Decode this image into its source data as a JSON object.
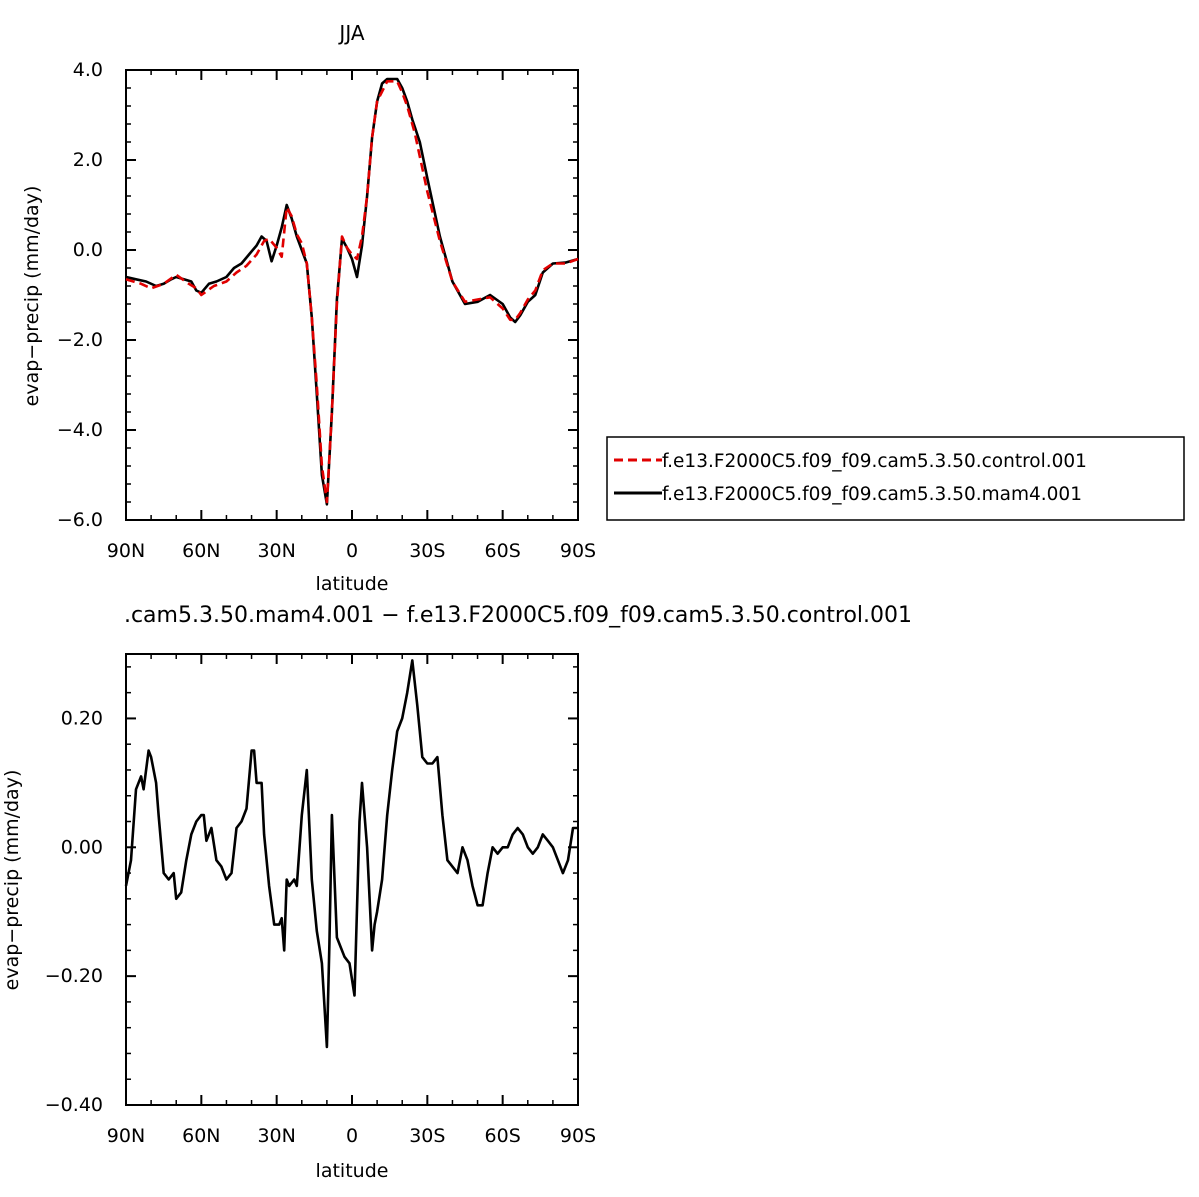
{
  "chart_data": [
    {
      "type": "line",
      "title": "JJA",
      "xlabel": "latitude",
      "ylabel": "evap−precip (mm/day)",
      "x_axis_note": "x runs from 90N to 90S; southern latitudes negative",
      "xlim": [
        90,
        -90
      ],
      "ylim": [
        -6.0,
        4.0
      ],
      "x_ticks": [
        90,
        60,
        30,
        0,
        -30,
        -60,
        -90
      ],
      "x_tick_labels": [
        "90N",
        "60N",
        "30N",
        "0",
        "30S",
        "60S",
        "90S"
      ],
      "y_ticks": [
        4.0,
        2.0,
        0.0,
        -2.0,
        -4.0,
        -6.0
      ],
      "y_tick_labels": [
        "4.0",
        "2.0",
        "0.0",
        "−2.0",
        "−4.0",
        "−6.0"
      ],
      "legend_position": "right",
      "series": [
        {
          "name": "f.e13.F2000C5.f09_f09.cam5.3.50.control.001",
          "color": "#e00000",
          "style": "dashed",
          "x": [
            90,
            84,
            80,
            75,
            70,
            65,
            62,
            60,
            55,
            50,
            46,
            42,
            38,
            35,
            33,
            30,
            28,
            26,
            24,
            22,
            20,
            18,
            16,
            14,
            12,
            10,
            8,
            6,
            4,
            2,
            0,
            -2,
            -4,
            -6,
            -8,
            -10,
            -14,
            -18,
            -20,
            -22,
            -25,
            -30,
            -35,
            -40,
            -45,
            -50,
            -55,
            -60,
            -63,
            -65,
            -67,
            -70,
            -73,
            -76,
            -80,
            -85,
            -90
          ],
          "y": [
            -0.65,
            -0.75,
            -0.85,
            -0.75,
            -0.55,
            -0.75,
            -0.85,
            -1.0,
            -0.8,
            -0.7,
            -0.5,
            -0.35,
            -0.1,
            0.2,
            0.25,
            0.05,
            -0.15,
            0.95,
            0.75,
            0.35,
            0.15,
            -0.3,
            -1.5,
            -3.0,
            -4.8,
            -5.6,
            -3.6,
            -1.2,
            0.3,
            0.05,
            -0.1,
            -0.2,
            0.3,
            1.2,
            2.5,
            3.3,
            3.75,
            3.75,
            3.5,
            3.2,
            2.6,
            1.3,
            0.2,
            -0.7,
            -1.15,
            -1.1,
            -1.05,
            -1.3,
            -1.55,
            -1.55,
            -1.4,
            -1.1,
            -0.9,
            -0.45,
            -0.3,
            -0.3,
            -0.2
          ]
        },
        {
          "name": "f.e13.F2000C5.f09_f09.cam5.3.50.mam4.001",
          "color": "#000000",
          "style": "solid",
          "x": [
            90,
            86,
            82,
            78,
            75,
            72,
            70,
            67,
            64,
            62,
            60,
            57,
            54,
            50,
            47,
            44,
            41,
            38,
            36,
            34,
            32,
            30,
            28,
            26,
            24,
            22,
            20,
            18,
            16,
            14,
            12,
            10,
            8,
            6,
            4,
            2,
            0,
            -2,
            -4,
            -6,
            -8,
            -10,
            -12,
            -14,
            -16,
            -18,
            -20,
            -22,
            -24,
            -27,
            -30,
            -35,
            -40,
            -45,
            -50,
            -55,
            -60,
            -63,
            -65,
            -67,
            -70,
            -73,
            -76,
            -80,
            -85,
            -90
          ],
          "y": [
            -0.6,
            -0.65,
            -0.7,
            -0.8,
            -0.75,
            -0.65,
            -0.6,
            -0.65,
            -0.7,
            -0.9,
            -0.95,
            -0.75,
            -0.7,
            -0.6,
            -0.4,
            -0.3,
            -0.1,
            0.1,
            0.3,
            0.2,
            -0.25,
            0.1,
            0.5,
            1.0,
            0.7,
            0.3,
            0.0,
            -0.3,
            -1.5,
            -3.2,
            -5.0,
            -5.65,
            -3.6,
            -1.1,
            0.25,
            0.05,
            -0.2,
            -0.6,
            0.1,
            1.2,
            2.5,
            3.3,
            3.7,
            3.8,
            3.8,
            3.8,
            3.6,
            3.3,
            2.9,
            2.4,
            1.6,
            0.3,
            -0.7,
            -1.2,
            -1.15,
            -1.0,
            -1.2,
            -1.5,
            -1.6,
            -1.45,
            -1.15,
            -1.0,
            -0.5,
            -0.3,
            -0.28,
            -0.2
          ]
        }
      ]
    },
    {
      "type": "line",
      "title": ".cam5.3.50.mam4.001 − f.e13.F2000C5.f09_f09.cam5.3.50.control.001",
      "xlabel": "latitude",
      "ylabel": "evap−precip (mm/day)",
      "x_axis_note": "x runs from 90N to 90S; southern latitudes negative",
      "xlim": [
        90,
        -90
      ],
      "ylim": [
        -0.4,
        0.3
      ],
      "x_ticks": [
        90,
        60,
        30,
        0,
        -30,
        -60,
        -90
      ],
      "x_tick_labels": [
        "90N",
        "60N",
        "30N",
        "0",
        "30S",
        "60S",
        "90S"
      ],
      "y_ticks": [
        0.2,
        0.0,
        -0.2,
        -0.4
      ],
      "y_tick_labels": [
        "0.20",
        "0.00",
        "−0.20",
        "−0.40"
      ],
      "series": [
        {
          "color": "#000000",
          "style": "solid",
          "x": [
            90,
            88,
            86,
            84,
            83,
            81,
            80,
            78,
            77,
            75,
            73,
            71,
            70,
            68,
            66,
            64,
            62,
            60,
            59,
            58,
            56,
            54,
            52,
            50,
            48,
            46,
            44,
            42,
            40,
            39,
            38,
            36,
            35,
            33,
            31,
            29,
            28,
            27,
            26,
            25,
            23,
            22,
            20,
            18,
            16,
            14,
            12,
            10,
            9,
            8,
            6,
            5,
            3,
            1,
            -1,
            -3,
            -4,
            -6,
            -8,
            -9,
            -10,
            -12,
            -14,
            -16,
            -18,
            -20,
            -22,
            -24,
            -26,
            -28,
            -30,
            -32,
            -34,
            -36,
            -38,
            -40,
            -42,
            -44,
            -46,
            -48,
            -50,
            -52,
            -54,
            -56,
            -58,
            -60,
            -62,
            -64,
            -66,
            -68,
            -70,
            -72,
            -74,
            -76,
            -78,
            -80,
            -82,
            -84,
            -86,
            -88,
            -90
          ],
          "y": [
            -0.06,
            -0.02,
            0.09,
            0.11,
            0.09,
            0.15,
            0.14,
            0.1,
            0.05,
            -0.04,
            -0.05,
            -0.04,
            -0.08,
            -0.07,
            -0.02,
            0.02,
            0.04,
            0.05,
            0.05,
            0.01,
            0.03,
            -0.02,
            -0.03,
            -0.05,
            -0.04,
            0.03,
            0.04,
            0.06,
            0.15,
            0.15,
            0.1,
            0.1,
            0.02,
            -0.06,
            -0.12,
            -0.12,
            -0.11,
            -0.16,
            -0.05,
            -0.06,
            -0.05,
            -0.06,
            0.05,
            0.12,
            -0.05,
            -0.13,
            -0.18,
            -0.31,
            -0.15,
            0.05,
            -0.14,
            -0.15,
            -0.17,
            -0.18,
            -0.23,
            0.04,
            0.1,
            0.0,
            -0.16,
            -0.12,
            -0.1,
            -0.05,
            0.05,
            0.12,
            0.18,
            0.2,
            0.24,
            0.29,
            0.22,
            0.14,
            0.13,
            0.13,
            0.14,
            0.05,
            -0.02,
            -0.03,
            -0.04,
            0.0,
            -0.02,
            -0.06,
            -0.09,
            -0.09,
            -0.04,
            0.0,
            -0.01,
            0.0,
            0.0,
            0.02,
            0.03,
            0.02,
            0.0,
            -0.01,
            0.0,
            0.02,
            0.01,
            0.0,
            -0.02,
            -0.04,
            -0.02,
            0.03,
            0.03
          ]
        }
      ]
    }
  ]
}
